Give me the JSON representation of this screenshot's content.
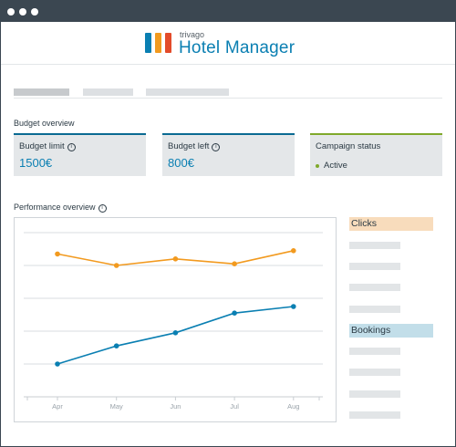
{
  "window": {
    "controls": [
      "dot",
      "dot",
      "dot"
    ]
  },
  "header": {
    "brand_small": "trivago",
    "brand_title": "Hotel Manager",
    "logo_colors": [
      "#0a7fb2",
      "#f29a1f",
      "#e34b2a"
    ]
  },
  "budget_overview": {
    "heading": "Budget overview",
    "cards": {
      "budget_limit": {
        "label": "Budget limit",
        "value": "1500€"
      },
      "budget_left": {
        "label": "Budget left",
        "value": "800€"
      },
      "campaign_status": {
        "label": "Campaign status",
        "value": "Active"
      }
    }
  },
  "performance_overview": {
    "heading": "Performance overview",
    "legend": {
      "clicks": "Clicks",
      "bookings": "Bookings"
    }
  },
  "colors": {
    "accent_blue": "#0a7fb2",
    "clicks_orange": "#f29a1f",
    "status_green": "#7fa92b",
    "clicks_legend_bg": "#f8dcbc",
    "bookings_legend_bg": "#c2dee9"
  },
  "chart_data": {
    "type": "line",
    "categories": [
      "Apr",
      "May",
      "Jun",
      "Jul",
      "Aug"
    ],
    "ylim": [
      0,
      5
    ],
    "grid": true,
    "legend_placement": "right",
    "series": [
      {
        "name": "Clicks",
        "color": "#f29a1f",
        "values": [
          4.35,
          4.0,
          4.2,
          4.05,
          4.45
        ]
      },
      {
        "name": "Bookings",
        "color": "#0a7fb2",
        "values": [
          1.0,
          1.55,
          1.95,
          2.55,
          2.75
        ]
      }
    ]
  }
}
